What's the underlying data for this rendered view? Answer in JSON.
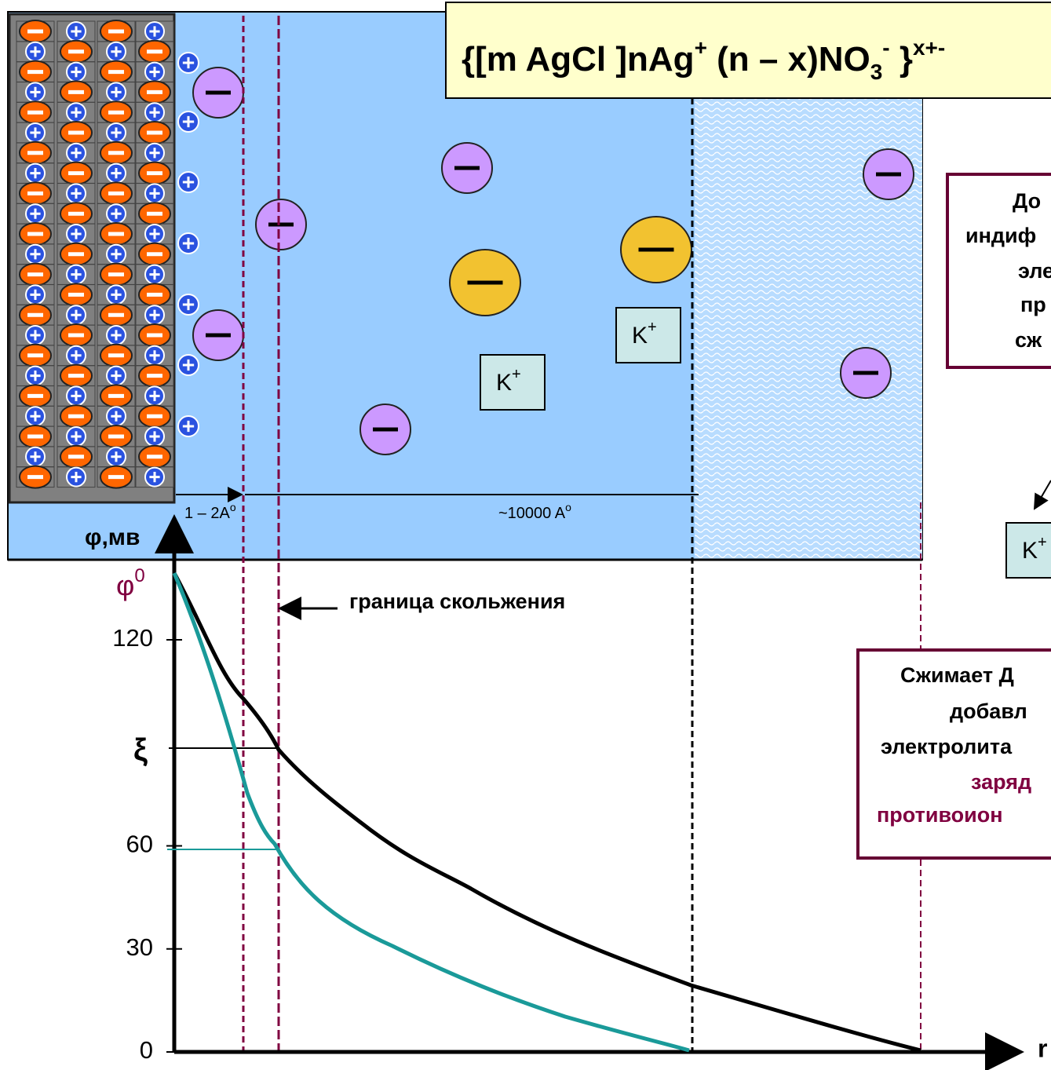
{
  "formula": {
    "open": "{[m AgCl ]nAg",
    "ag_charge": "+",
    "mid": " (n – x)NO",
    "no3_index": "3",
    "no3_charge": "-",
    "close": " }",
    "charge": "x+-"
  },
  "axis": {
    "y_label": "φ,мв",
    "phi": "φ",
    "phi_sup": "0",
    "xi": "ξ",
    "x_label": "r",
    "yticks": [
      0,
      30,
      60,
      120
    ],
    "ylim": [
      0,
      140
    ]
  },
  "labels": {
    "slip_boundary": "граница скольжения",
    "dense_width": "1 – 2A",
    "dense_unit": "o",
    "diffuse_width": "~10000 A",
    "diffuse_unit": "o"
  },
  "ion": {
    "symbol": "K",
    "charge": "+"
  },
  "box_top": [
    "До",
    "индиф",
    "эле",
    "пр",
    "сж"
  ],
  "box_bottom": [
    "Сжимает Д",
    "добавл",
    "электролита",
    "заряд",
    "противоион"
  ]
}
